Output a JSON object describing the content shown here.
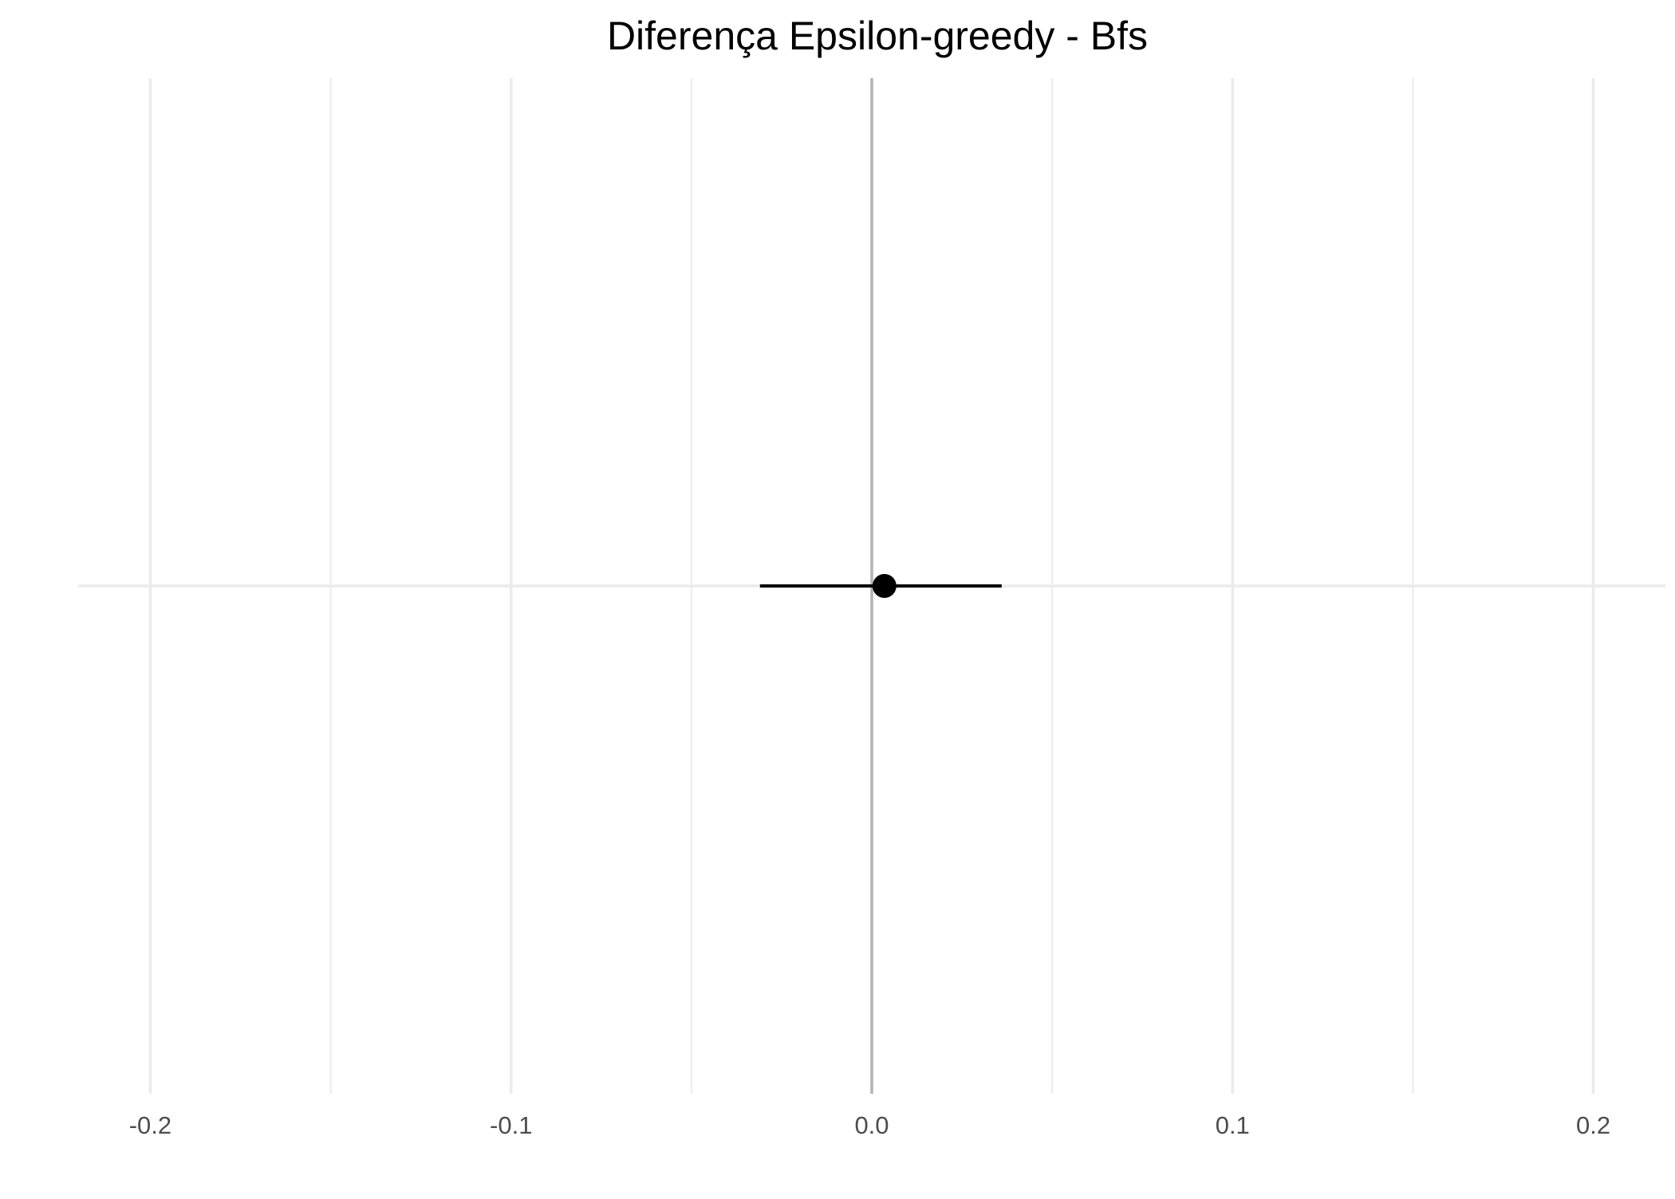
{
  "chart_data": {
    "type": "scatter",
    "title": "Diferença Epsilon-greedy - Bfs",
    "xlabel": "",
    "ylabel": "",
    "xlim": [
      -0.22,
      0.22
    ],
    "x_ticks": [
      -0.2,
      -0.1,
      0.0,
      0.1,
      0.2
    ],
    "x_tick_labels": [
      "-0.2",
      "-0.1",
      "0.0",
      "0.1",
      "0.2"
    ],
    "x_minor_ticks": [
      -0.15,
      -0.05,
      0.05,
      0.15
    ],
    "grid": true,
    "reference_line": {
      "x": 0.0,
      "color": "#b3b3b3"
    },
    "points": [
      {
        "x": 0.0035,
        "ci_low": -0.031,
        "ci_high": 0.036
      }
    ],
    "colors": {
      "point": "#000000",
      "errorbar": "#000000",
      "grid": "#ebebeb",
      "tick_text": "#4d4d4d"
    }
  }
}
